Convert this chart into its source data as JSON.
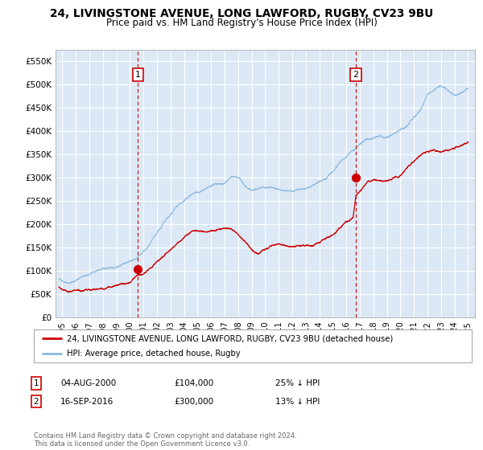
{
  "title_line1": "24, LIVINGSTONE AVENUE, LONG LAWFORD, RUGBY, CV23 9BU",
  "title_line2": "Price paid vs. HM Land Registry's House Price Index (HPI)",
  "bg_color": "#ffffff",
  "plot_bg_color": "#dce8f5",
  "grid_color": "#ffffff",
  "hpi_color": "#89b8e0",
  "price_color": "#cc0000",
  "marker_color": "#cc0000",
  "dashed_color": "#cc0000",
  "sale1_x": 2000.58,
  "sale1_y": 104000,
  "sale2_x": 2016.71,
  "sale2_y": 300000,
  "ylim_min": 0,
  "ylim_max": 575000,
  "xlim_min": 1994.5,
  "xlim_max": 2025.5,
  "yticks": [
    0,
    50000,
    100000,
    150000,
    200000,
    250000,
    300000,
    350000,
    400000,
    450000,
    500000,
    550000
  ],
  "ytick_labels": [
    "£0",
    "£50K",
    "£100K",
    "£150K",
    "£200K",
    "£250K",
    "£300K",
    "£350K",
    "£400K",
    "£450K",
    "£500K",
    "£550K"
  ],
  "legend_label_price": "24, LIVINGSTONE AVENUE, LONG LAWFORD, RUGBY, CV23 9BU (detached house)",
  "legend_label_hpi": "HPI: Average price, detached house, Rugby",
  "annotation1_date": "04-AUG-2000",
  "annotation1_price": "£104,000",
  "annotation1_pct": "25% ↓ HPI",
  "annotation2_date": "16-SEP-2016",
  "annotation2_price": "£300,000",
  "annotation2_pct": "13% ↓ HPI",
  "footer": "Contains HM Land Registry data © Crown copyright and database right 2024.\nThis data is licensed under the Open Government Licence v3.0.",
  "xtick_years": [
    1995,
    1996,
    1997,
    1998,
    1999,
    2000,
    2001,
    2002,
    2003,
    2004,
    2005,
    2006,
    2007,
    2008,
    2009,
    2010,
    2011,
    2012,
    2013,
    2014,
    2015,
    2016,
    2017,
    2018,
    2019,
    2020,
    2021,
    2022,
    2023,
    2024,
    2025
  ]
}
